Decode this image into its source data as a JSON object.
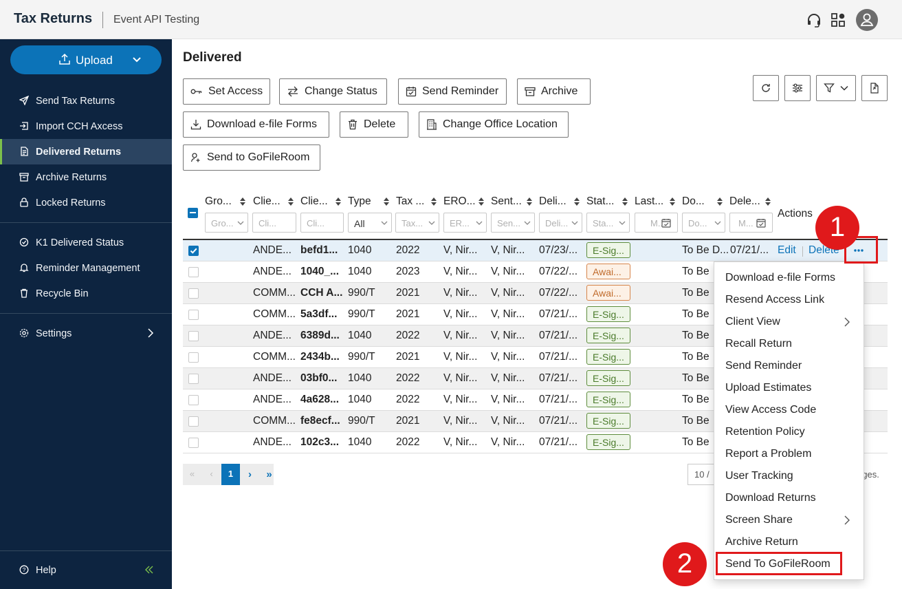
{
  "header": {
    "brand": "Tax Returns",
    "company": "Event API Testing"
  },
  "sidebar": {
    "upload_label": "Upload",
    "items": [
      {
        "label": "Send Tax Returns",
        "icon": "send-icon"
      },
      {
        "label": "Import CCH Axcess",
        "icon": "import-icon"
      },
      {
        "label": "Delivered Returns",
        "icon": "document-icon",
        "active": true
      },
      {
        "label": "Archive Returns",
        "icon": "archive-icon"
      },
      {
        "label": "Locked Returns",
        "icon": "lock-icon"
      },
      {
        "label": "K1 Delivered Status",
        "icon": "k1-icon"
      },
      {
        "label": "Reminder Management",
        "icon": "bell-icon"
      },
      {
        "label": "Recycle Bin",
        "icon": "trash-icon"
      },
      {
        "label": "Settings",
        "icon": "gear-icon"
      }
    ],
    "help_label": "Help"
  },
  "main": {
    "title": "Delivered",
    "toolbar": {
      "set_access": "Set Access",
      "change_status": "Change Status",
      "send_reminder": "Send Reminder",
      "archive": "Archive",
      "download_efile": "Download e-file Forms",
      "delete": "Delete",
      "change_office": "Change Office Location",
      "send_gofileroom": "Send to GoFileRoom"
    },
    "columns": [
      "Gro...",
      "Clie...",
      "Clie...",
      "Type",
      "Tax ...",
      "ERO...",
      "Sent...",
      "Deli...",
      "Stat...",
      "Last...",
      "Do...",
      "Dele...",
      "Actions"
    ],
    "filters": [
      "Gro...",
      "Cli...",
      "Cli...",
      "All",
      "Tax...",
      "ER...",
      "Sen...",
      "Deli...",
      "Sta...",
      "M...",
      "Do...",
      "M..."
    ],
    "rows": [
      {
        "client_name": "ANDE...",
        "client_id": "befd1...",
        "type": "1040",
        "tax_year": "2022",
        "ero": "V, Nir...",
        "sent_by": "V, Nir...",
        "delivered": "07/23/...",
        "status": "E-Sig...",
        "status_kind": "ok",
        "doc": "To Be D...",
        "deleted": "07/21/...",
        "selected": true
      },
      {
        "client_name": "ANDE...",
        "client_id": "1040_...",
        "type": "1040",
        "tax_year": "2023",
        "ero": "V, Nir...",
        "sent_by": "V, Nir...",
        "delivered": "07/22/...",
        "status": "Awai...",
        "status_kind": "warn",
        "doc": "To Be"
      },
      {
        "client_name": "COMM...",
        "client_id": "CCH A...",
        "type": "990/T",
        "tax_year": "2021",
        "ero": "V, Nir...",
        "sent_by": "V, Nir...",
        "delivered": "07/22/...",
        "status": "Awai...",
        "status_kind": "warn",
        "doc": "To Be"
      },
      {
        "client_name": "COMM...",
        "client_id": "5a3df...",
        "type": "990/T",
        "tax_year": "2021",
        "ero": "V, Nir...",
        "sent_by": "V, Nir...",
        "delivered": "07/21/...",
        "status": "E-Sig...",
        "status_kind": "ok",
        "doc": "To Be"
      },
      {
        "client_name": "ANDE...",
        "client_id": "6389d...",
        "type": "1040",
        "tax_year": "2022",
        "ero": "V, Nir...",
        "sent_by": "V, Nir...",
        "delivered": "07/21/...",
        "status": "E-Sig...",
        "status_kind": "ok",
        "doc": "To Be"
      },
      {
        "client_name": "COMM...",
        "client_id": "2434b...",
        "type": "990/T",
        "tax_year": "2021",
        "ero": "V, Nir...",
        "sent_by": "V, Nir...",
        "delivered": "07/21/...",
        "status": "E-Sig...",
        "status_kind": "ok",
        "doc": "To Be"
      },
      {
        "client_name": "ANDE...",
        "client_id": "03bf0...",
        "type": "1040",
        "tax_year": "2022",
        "ero": "V, Nir...",
        "sent_by": "V, Nir...",
        "delivered": "07/21/...",
        "status": "E-Sig...",
        "status_kind": "ok",
        "doc": "To Be"
      },
      {
        "client_name": "ANDE...",
        "client_id": "4a628...",
        "type": "1040",
        "tax_year": "2022",
        "ero": "V, Nir...",
        "sent_by": "V, Nir...",
        "delivered": "07/21/...",
        "status": "E-Sig...",
        "status_kind": "ok",
        "doc": "To Be"
      },
      {
        "client_name": "COMM...",
        "client_id": "fe8ecf...",
        "type": "990/T",
        "tax_year": "2021",
        "ero": "V, Nir...",
        "sent_by": "V, Nir...",
        "delivered": "07/21/...",
        "status": "E-Sig...",
        "status_kind": "ok",
        "doc": "To Be"
      },
      {
        "client_name": "ANDE...",
        "client_id": "102c3...",
        "type": "1040",
        "tax_year": "2022",
        "ero": "V, Nir...",
        "sent_by": "V, Nir...",
        "delivered": "07/21/...",
        "status": "E-Sig...",
        "status_kind": "ok",
        "doc": "To Be"
      }
    ],
    "row_actions": {
      "edit": "Edit",
      "delete": "Delete",
      "more": "..."
    },
    "pagination": {
      "current_page": "1",
      "page_size": "10 /",
      "tail": "ages."
    }
  },
  "menu": {
    "items": [
      {
        "label": "Download e-file Forms"
      },
      {
        "label": "Resend Access Link"
      },
      {
        "label": "Client View",
        "submenu": true
      },
      {
        "label": "Recall Return"
      },
      {
        "label": "Send Reminder"
      },
      {
        "label": "Upload Estimates"
      },
      {
        "label": "View Access Code"
      },
      {
        "label": "Retention Policy"
      },
      {
        "label": "Report a Problem"
      },
      {
        "label": "User Tracking"
      },
      {
        "label": "Download Returns"
      },
      {
        "label": "Screen Share",
        "submenu": true
      },
      {
        "label": "Archive Return"
      },
      {
        "label": "Send To GoFileRoom",
        "highlighted": true
      }
    ]
  },
  "callouts": {
    "step1": "1",
    "step2": "2"
  },
  "colors": {
    "sidebar_bg": "#0d2440",
    "accent": "#0c73b8",
    "active_bar": "#7cc04b",
    "callout_red": "#e0191b",
    "status_ok": "#4a7a2a",
    "status_warn": "#c06a2a"
  }
}
